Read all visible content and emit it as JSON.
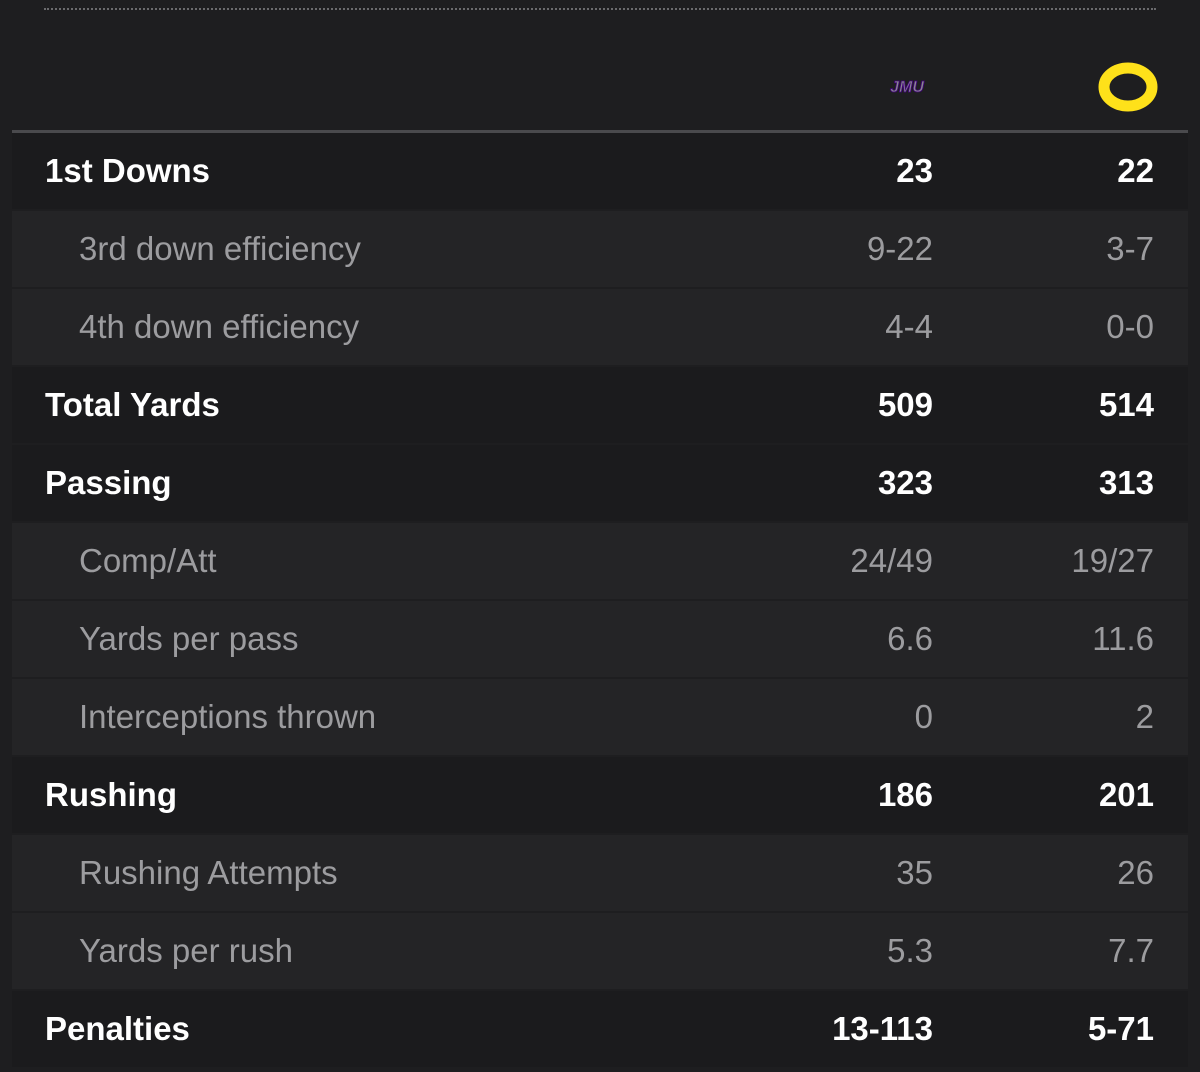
{
  "teams": {
    "away": {
      "abbr": "JMU",
      "logo_icon": "jmu-logo-icon",
      "color": "#450084"
    },
    "home": {
      "abbr": "O",
      "logo_icon": "oregon-logo-icon",
      "color": "#fee11a"
    }
  },
  "rows": [
    {
      "label": "1st Downs",
      "away": "23",
      "home": "22",
      "type": "main"
    },
    {
      "label": "3rd down efficiency",
      "away": "9-22",
      "home": "3-7",
      "type": "sub"
    },
    {
      "label": "4th down efficiency",
      "away": "4-4",
      "home": "0-0",
      "type": "sub"
    },
    {
      "label": "Total Yards",
      "away": "509",
      "home": "514",
      "type": "main"
    },
    {
      "label": "Passing",
      "away": "323",
      "home": "313",
      "type": "main"
    },
    {
      "label": "Comp/Att",
      "away": "24/49",
      "home": "19/27",
      "type": "sub"
    },
    {
      "label": "Yards per pass",
      "away": "6.6",
      "home": "11.6",
      "type": "sub"
    },
    {
      "label": "Interceptions thrown",
      "away": "0",
      "home": "2",
      "type": "sub"
    },
    {
      "label": "Rushing",
      "away": "186",
      "home": "201",
      "type": "main"
    },
    {
      "label": "Rushing Attempts",
      "away": "35",
      "home": "26",
      "type": "sub"
    },
    {
      "label": "Yards per rush",
      "away": "5.3",
      "home": "7.7",
      "type": "sub"
    },
    {
      "label": "Penalties",
      "away": "13-113",
      "home": "5-71",
      "type": "main"
    }
  ]
}
